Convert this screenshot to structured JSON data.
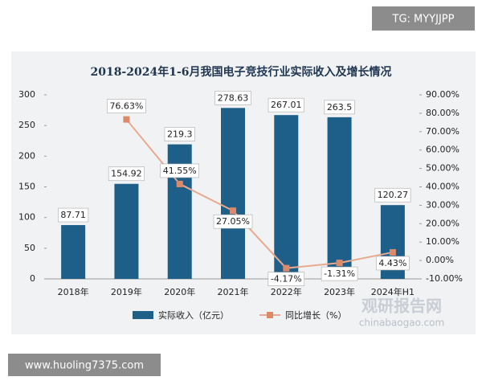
{
  "overlay": {
    "top_right": "TG: MYYJJPP",
    "bottom_left": "www.huoling7375.com"
  },
  "chart_data": {
    "type": "bar",
    "title": "2018-2024年1-6月我国电子竞技行业实际收入及增长情况",
    "categories": [
      "2018年",
      "2019年",
      "2020年",
      "2021年",
      "2022年",
      "2023年",
      "2024年H1"
    ],
    "series": [
      {
        "name": "实际收入（亿元）",
        "type": "bar",
        "color": "#1d5f88",
        "values": [
          87.71,
          154.92,
          219.3,
          278.63,
          267.01,
          263.5,
          120.27
        ]
      },
      {
        "name": "同比增长（%）",
        "type": "line",
        "axis": "y2",
        "color": "#e9a98f",
        "marker_color": "#dd8a6b",
        "values": [
          null,
          76.63,
          41.55,
          27.05,
          -4.17,
          -1.31,
          4.43
        ],
        "value_labels": [
          null,
          "76.63%",
          "41.55%",
          "27.05%",
          "-4.17%",
          "-1.31%",
          "4.43%"
        ]
      }
    ],
    "ylim": [
      0,
      300
    ],
    "yticks": [
      0,
      50,
      100,
      150,
      200,
      250,
      300
    ],
    "y2lim": [
      -10,
      90
    ],
    "y2ticks": [
      {
        "value": -10,
        "label": "-10.00%"
      },
      {
        "value": 0,
        "label": "0.00%"
      },
      {
        "value": 10,
        "label": "10.00%"
      },
      {
        "value": 20,
        "label": "20.00%"
      },
      {
        "value": 30,
        "label": "30.00%"
      },
      {
        "value": 40,
        "label": "40.00%"
      },
      {
        "value": 50,
        "label": "50.00%"
      },
      {
        "value": 60,
        "label": "60.00%"
      },
      {
        "value": 70,
        "label": "70.00%"
      },
      {
        "value": 80,
        "label": "80.00%"
      },
      {
        "value": 90,
        "label": "90.00%"
      }
    ],
    "legend": "bottom",
    "watermark": {
      "name": "观研报告网",
      "url": "chinabaogao.com"
    }
  }
}
